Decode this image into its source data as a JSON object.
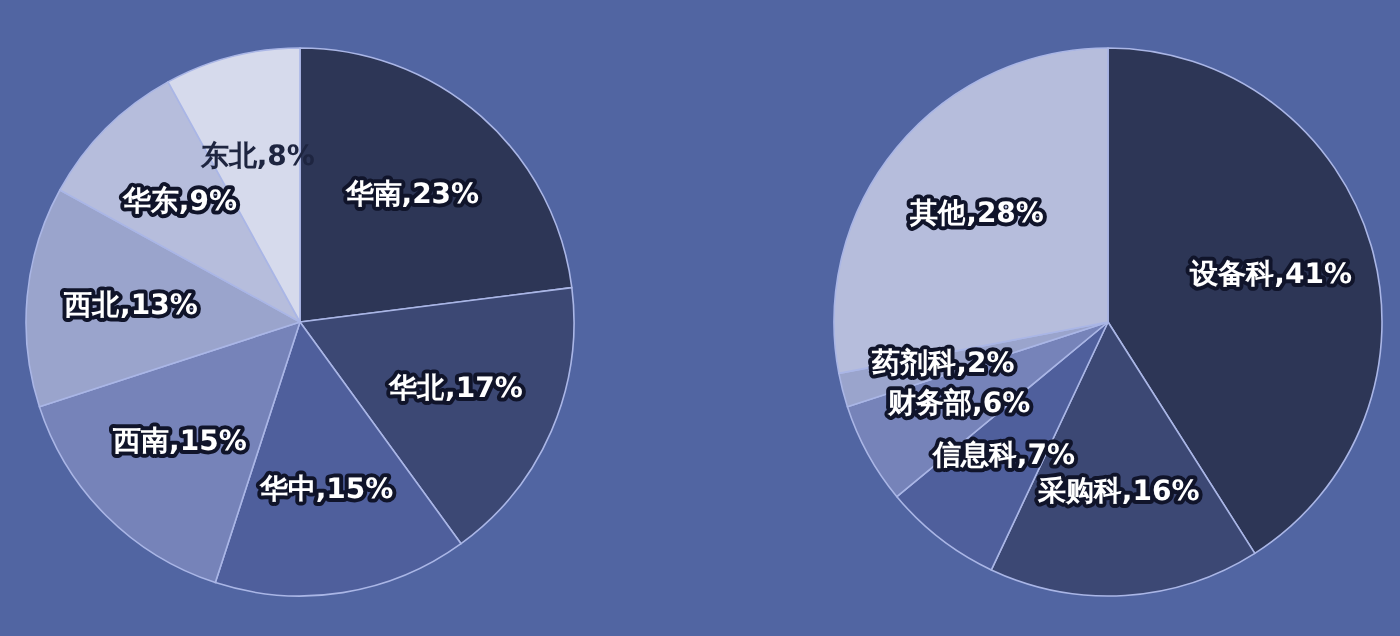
{
  "chart_data": [
    {
      "type": "pie",
      "categories": [
        "华南",
        "华北",
        "华中",
        "西南",
        "西北",
        "华东",
        "东北"
      ],
      "values": [
        23,
        17,
        15,
        15,
        13,
        9,
        8
      ],
      "value_labels": [
        ",23%",
        ",17%",
        ",15%",
        ",15%",
        ",13%",
        ",9%",
        ",8%"
      ],
      "colors": [
        "#2d3656",
        "#3c4874",
        "#4f5f9c",
        "#7683b9",
        "#9aa4cc",
        "#b6bddc",
        "#d6daec"
      ]
    },
    {
      "type": "pie",
      "categories": [
        "设备科",
        "采购科",
        "信息科",
        "财务部",
        "药剂科",
        "其他"
      ],
      "values": [
        41,
        16,
        7,
        6,
        2,
        28
      ],
      "value_labels": [
        ",41%",
        ",16%",
        ",7%",
        ",6%",
        ",2%",
        ",28%"
      ],
      "colors": [
        "#2d3656",
        "#3c4874",
        "#4f5f9c",
        "#7683b9",
        "#9aa4cc",
        "#b6bddc"
      ]
    }
  ]
}
